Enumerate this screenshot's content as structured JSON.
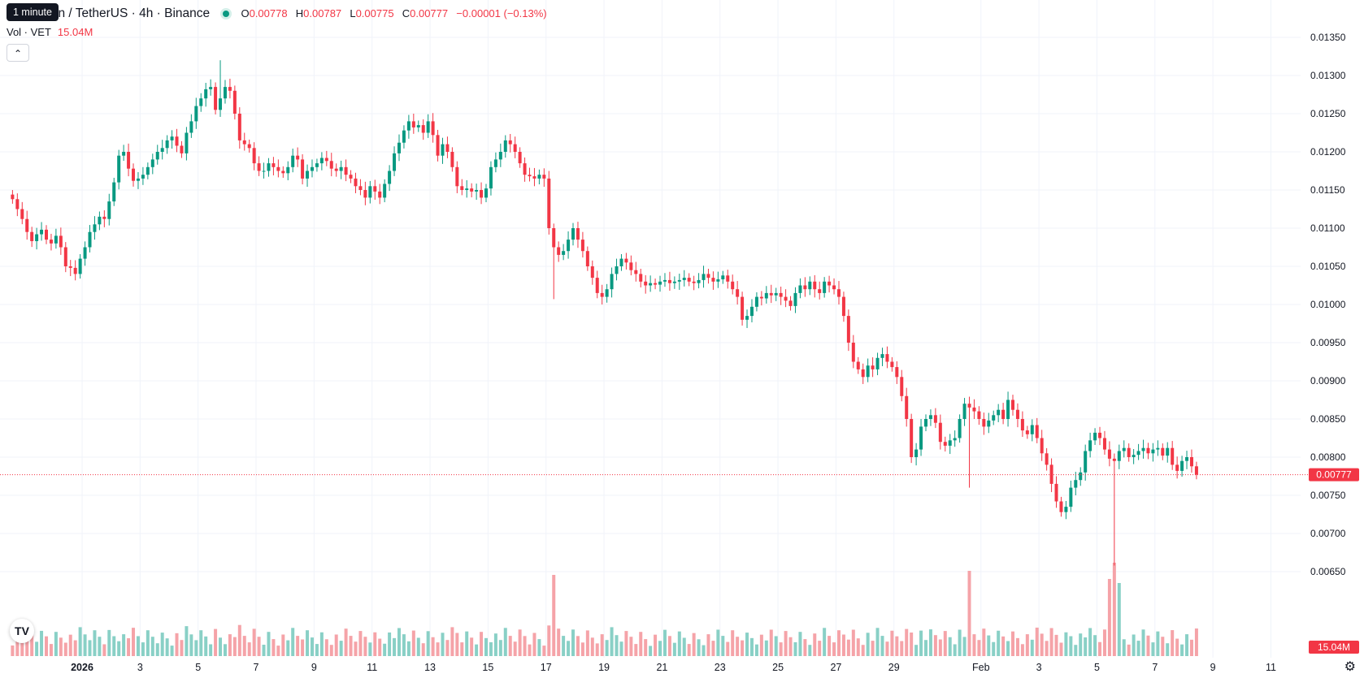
{
  "header": {
    "title": "in / TetherUS · 4h · Binance",
    "open_label": "O",
    "open": "0.00778",
    "high_label": "H",
    "high": "0.00787",
    "low_label": "L",
    "low": "0.00775",
    "close_label": "C",
    "close": "0.00777",
    "change": "−0.00001 (−0.13%)",
    "tooltip": "1 minute"
  },
  "volume": {
    "label": "Vol · VET",
    "value": "15.04M"
  },
  "collapse_icon": "chevron-up",
  "logo_text": "TV",
  "settings_icon": "gear-icon",
  "colors": {
    "up": "#089981",
    "down": "#f23645",
    "vol_up": "#89d0c6",
    "vol_down": "#f5a3a8",
    "grid": "#f0f3fa"
  },
  "chart_data": {
    "type": "candlestick",
    "price_axis_ticks": [
      "0.01350",
      "0.01300",
      "0.01250",
      "0.01200",
      "0.01150",
      "0.01100",
      "0.01050",
      "0.01000",
      "0.00950",
      "0.00900",
      "0.00850",
      "0.00800",
      "0.00750",
      "0.00700",
      "0.00650"
    ],
    "ylim": [
      0.00625,
      0.01372
    ],
    "last_price": "0.00777",
    "last_volume": "15.04M",
    "x_ticks": [
      {
        "label": "2026",
        "bold": true,
        "d": 0
      },
      {
        "label": "3",
        "d": 2
      },
      {
        "label": "5",
        "d": 4
      },
      {
        "label": "7",
        "d": 6
      },
      {
        "label": "9",
        "d": 8
      },
      {
        "label": "11",
        "d": 10
      },
      {
        "label": "13",
        "d": 12
      },
      {
        "label": "15",
        "d": 14
      },
      {
        "label": "17",
        "d": 16
      },
      {
        "label": "19",
        "d": 18
      },
      {
        "label": "21",
        "d": 20
      },
      {
        "label": "23",
        "d": 22
      },
      {
        "label": "25",
        "d": 24
      },
      {
        "label": "27",
        "d": 26
      },
      {
        "label": "29",
        "d": 28
      },
      {
        "label": "Feb",
        "d": 31
      },
      {
        "label": "3",
        "d": 33
      },
      {
        "label": "5",
        "d": 35
      },
      {
        "label": "7",
        "d": 37
      },
      {
        "label": "9",
        "d": 39
      },
      {
        "label": "11",
        "d": 41
      }
    ],
    "first_day_offset": -2.4,
    "closes": [
      0.01138,
      0.01125,
      0.01112,
      0.01095,
      0.01083,
      0.01092,
      0.01098,
      0.01085,
      0.0108,
      0.0109,
      0.01075,
      0.0105,
      0.01048,
      0.0104,
      0.0106,
      0.01075,
      0.01095,
      0.01105,
      0.01115,
      0.01112,
      0.01135,
      0.0116,
      0.01195,
      0.012,
      0.01178,
      0.01162,
      0.01165,
      0.0117,
      0.0118,
      0.0119,
      0.012,
      0.01205,
      0.01215,
      0.0122,
      0.01208,
      0.01198,
      0.01225,
      0.0124,
      0.0126,
      0.0127,
      0.01282,
      0.01285,
      0.01255,
      0.0127,
      0.01285,
      0.0128,
      0.0125,
      0.01215,
      0.0121,
      0.01205,
      0.01185,
      0.01175,
      0.01175,
      0.01185,
      0.0118,
      0.01175,
      0.01172,
      0.0118,
      0.01195,
      0.0119,
      0.01165,
      0.01175,
      0.0118,
      0.01185,
      0.01192,
      0.01188,
      0.01178,
      0.01175,
      0.0118,
      0.0117,
      0.01165,
      0.01155,
      0.0115,
      0.0114,
      0.01155,
      0.01148,
      0.0114,
      0.01158,
      0.01175,
      0.01198,
      0.01212,
      0.01228,
      0.0124,
      0.01232,
      0.01235,
      0.01225,
      0.0124,
      0.01222,
      0.01195,
      0.0121,
      0.012,
      0.0118,
      0.01155,
      0.0115,
      0.01152,
      0.01148,
      0.0115,
      0.0114,
      0.01152,
      0.0118,
      0.0119,
      0.012,
      0.01215,
      0.0121,
      0.012,
      0.01185,
      0.0117,
      0.01168,
      0.01165,
      0.0117,
      0.01165,
      0.011,
      0.01075,
      0.01065,
      0.0107,
      0.01085,
      0.011,
      0.01085,
      0.0107,
      0.0105,
      0.01035,
      0.01015,
      0.0101,
      0.0102,
      0.0104,
      0.0105,
      0.0106,
      0.01055,
      0.01045,
      0.0104,
      0.0103,
      0.01025,
      0.01028,
      0.01026,
      0.0103,
      0.01032,
      0.01028,
      0.0103,
      0.01032,
      0.01035,
      0.0103,
      0.01028,
      0.01032,
      0.0104,
      0.01035,
      0.0103,
      0.01033,
      0.01038,
      0.0103,
      0.0102,
      0.0101,
      0.0098,
      0.00985,
      0.00997,
      0.0101,
      0.01008,
      0.01015,
      0.01012,
      0.01015,
      0.0101,
      0.01005,
      0.00998,
      0.01015,
      0.01025,
      0.0102,
      0.0103,
      0.0102,
      0.01015,
      0.0103,
      0.01025,
      0.0102,
      0.0101,
      0.00985,
      0.0095,
      0.00925,
      0.00915,
      0.00905,
      0.0092,
      0.00915,
      0.0093,
      0.00935,
      0.00925,
      0.00918,
      0.00905,
      0.0088,
      0.0085,
      0.008,
      0.0081,
      0.0084,
      0.0085,
      0.00855,
      0.00845,
      0.0082,
      0.00815,
      0.00822,
      0.00825,
      0.0085,
      0.0087,
      0.00865,
      0.0086,
      0.0085,
      0.0084,
      0.00848,
      0.00855,
      0.00862,
      0.0085,
      0.00875,
      0.00862,
      0.0085,
      0.00835,
      0.0083,
      0.00842,
      0.00825,
      0.00805,
      0.0079,
      0.00765,
      0.00742,
      0.00728,
      0.00735,
      0.0076,
      0.0077,
      0.0078,
      0.00808,
      0.00822,
      0.00832,
      0.00825,
      0.0081,
      0.00798,
      0.00795,
      0.00808,
      0.00812,
      0.008,
      0.00803,
      0.00808,
      0.00812,
      0.00805,
      0.0081,
      0.00812,
      0.00802,
      0.00812,
      0.0079,
      0.00782,
      0.00795,
      0.008,
      0.00788,
      0.00777
    ],
    "spikes": [
      {
        "i": 43,
        "high": 0.0132
      },
      {
        "i": 112,
        "low": 0.01007
      },
      {
        "i": 198,
        "low": 0.0076
      },
      {
        "i": 228,
        "low": 0.00658
      }
    ],
    "volume_spikes": [
      {
        "i": 112,
        "v": 1.0
      },
      {
        "i": 198,
        "v": 1.05
      },
      {
        "i": 227,
        "v": 0.95
      },
      {
        "i": 228,
        "v": 1.15
      },
      {
        "i": 229,
        "v": 0.9
      },
      {
        "i": 248,
        "v": 0.55
      }
    ]
  }
}
